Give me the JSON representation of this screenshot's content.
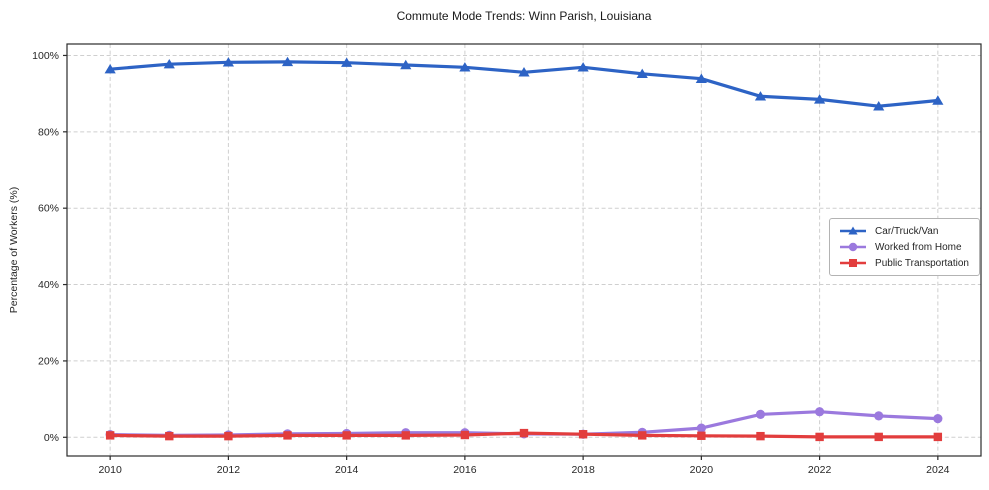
{
  "title": "Commute Mode Trends: Winn Parish, Louisiana",
  "chart_data": {
    "type": "line",
    "title": "Commute Mode Trends: Winn Parish, Louisiana",
    "xlabel": "",
    "ylabel": "Percentage of Workers (%)",
    "x": [
      2010,
      2011,
      2012,
      2013,
      2014,
      2015,
      2016,
      2017,
      2018,
      2019,
      2020,
      2021,
      2022,
      2023,
      2024
    ],
    "series": [
      {
        "name": "Car/Truck/Van",
        "color": "#2d63c5",
        "marker": "triangle",
        "values": [
          96.4,
          97.7,
          98.2,
          98.3,
          98.1,
          97.5,
          96.9,
          95.6,
          96.9,
          95.2,
          93.9,
          89.3,
          88.5,
          86.7,
          88.2
        ]
      },
      {
        "name": "Worked from Home",
        "color": "#9b79de",
        "marker": "circle",
        "values": [
          0.7,
          0.5,
          0.6,
          0.9,
          1.0,
          1.2,
          1.2,
          0.9,
          0.8,
          1.3,
          2.4,
          6.0,
          6.7,
          5.6,
          4.9
        ]
      },
      {
        "name": "Public Transportation",
        "color": "#e23d3d",
        "marker": "square",
        "values": [
          0.5,
          0.3,
          0.3,
          0.5,
          0.5,
          0.5,
          0.6,
          1.1,
          0.8,
          0.5,
          0.4,
          0.3,
          0.1,
          0.1,
          0.1
        ]
      }
    ],
    "xticks": [
      2010,
      2012,
      2014,
      2016,
      2018,
      2020,
      2022,
      2024
    ],
    "xtick_labels": [
      "2010",
      "2012",
      "2014",
      "2016",
      "2018",
      "2020",
      "2022",
      "2024"
    ],
    "yticks": [
      0,
      20,
      40,
      60,
      80,
      100
    ],
    "ytick_labels": [
      "0%",
      "20%",
      "40%",
      "60%",
      "80%",
      "100%"
    ],
    "xlim": [
      2009.27,
      2024.73
    ],
    "ylim": [
      -4.9,
      103.0
    ],
    "grid": "dashed",
    "legend_position": "right-center"
  },
  "colors": {
    "grid": "#cfcfcf",
    "axis": "#2b2b2b",
    "text": "#262626",
    "legend_border": "#b3b3b3",
    "background": "#ffffff"
  }
}
